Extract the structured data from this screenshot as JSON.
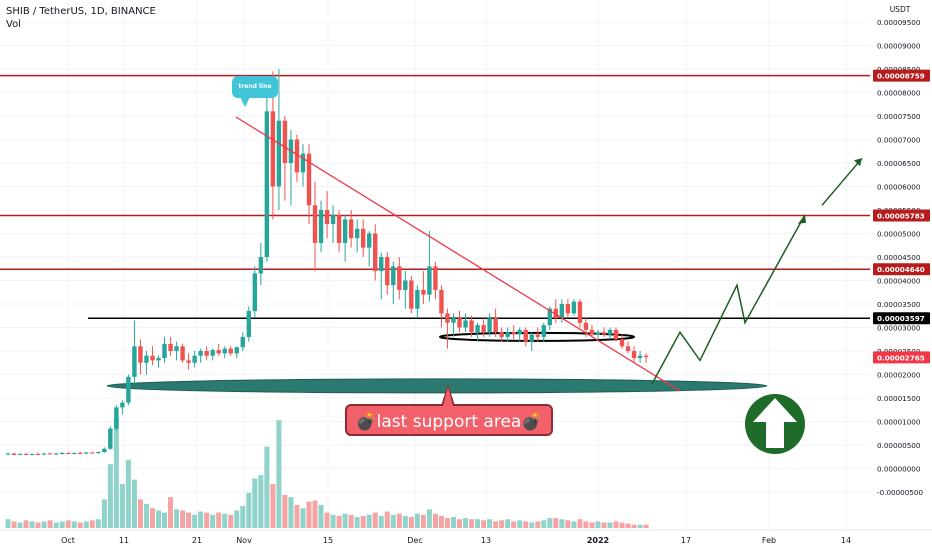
{
  "header": {
    "line1": "SHIB / TetherUS, 1D, BINANCE",
    "line2": "Vol"
  },
  "annotations": {
    "trend_line_label": "trend line",
    "support_label": "💣last support area💣"
  },
  "colors": {
    "up": "#26a69a",
    "down": "#ef5350",
    "resistance": "#b71c1c",
    "trendline": "#f23645",
    "arrow": "#1b5e20",
    "support_zone": "#2b7a6f"
  },
  "chart_data": {
    "type": "candlestick",
    "title": "SHIB / TetherUS, 1D, BINANCE",
    "x_label": "",
    "y_label": "USDT",
    "y_range": [
      -6e-06,
      9.9e-06
    ],
    "x_ticks": [
      "Oct",
      "11",
      "21",
      "Nov",
      "15",
      "Dec",
      "13",
      "2022",
      "17",
      "Feb",
      "14"
    ],
    "y_ticks": [
      "0.00009500",
      "0.00009000",
      "0.00008500",
      "0.00008000",
      "0.00007500",
      "0.00007000",
      "0.00006500",
      "0.00006000",
      "0.00005500",
      "0.00005000",
      "0.00004500",
      "0.00004000",
      "0.00003500",
      "0.00003000",
      "0.00002500",
      "0.00002000",
      "0.00001500",
      "0.00001000",
      "0.00000500",
      "0.00000000",
      "-0.00000500"
    ],
    "horizontal_levels": [
      {
        "label": "0.00008759",
        "value": 8.759e-06,
        "color": "#b71c1c"
      },
      {
        "label": "0.00005783",
        "value": 5.783e-06,
        "color": "#b71c1c"
      },
      {
        "label": "0.00004640",
        "value": 4.64e-06,
        "color": "#b71c1c"
      },
      {
        "label": "0.00003597",
        "value": 3.597e-06,
        "color": "#000000"
      }
    ],
    "last_price": {
      "label": "0.00002765",
      "value": 2.765e-06,
      "color": "#f23645"
    },
    "candles": [
      {
        "o": 7e-07,
        "h": 7.4e-07,
        "l": 6.8e-07,
        "c": 7.2e-07
      },
      {
        "o": 7.2e-07,
        "h": 7.3e-07,
        "l": 6.8e-07,
        "c": 6.9e-07
      },
      {
        "o": 6.9e-07,
        "h": 7.2e-07,
        "l": 6.8e-07,
        "c": 7.1e-07
      },
      {
        "o": 7.1e-07,
        "h": 7.3e-07,
        "l": 6.9e-07,
        "c": 7e-07
      },
      {
        "o": 7e-07,
        "h": 7.2e-07,
        "l": 6.8e-07,
        "c": 7.1e-07
      },
      {
        "o": 7.1e-07,
        "h": 7.4e-07,
        "l": 6.9e-07,
        "c": 7e-07
      },
      {
        "o": 7e-07,
        "h": 7.3e-07,
        "l": 6.8e-07,
        "c": 7.2e-07
      },
      {
        "o": 7.2e-07,
        "h": 7.4e-07,
        "l": 7e-07,
        "c": 7.1e-07
      },
      {
        "o": 7.1e-07,
        "h": 7.3e-07,
        "l": 6.9e-07,
        "c": 7.2e-07
      },
      {
        "o": 7.2e-07,
        "h": 7.5e-07,
        "l": 7e-07,
        "c": 7.3e-07
      },
      {
        "o": 7.3e-07,
        "h": 7.5e-07,
        "l": 7.1e-07,
        "c": 7.2e-07
      },
      {
        "o": 7.2e-07,
        "h": 7.4e-07,
        "l": 7e-07,
        "c": 7.3e-07
      },
      {
        "o": 7.3e-07,
        "h": 7.6e-07,
        "l": 7.1e-07,
        "c": 7.2e-07
      },
      {
        "o": 7.2e-07,
        "h": 7.5e-07,
        "l": 7e-07,
        "c": 7.4e-07
      },
      {
        "o": 7.4e-07,
        "h": 7.6e-07,
        "l": 7.2e-07,
        "c": 7.3e-07
      },
      {
        "o": 7.3e-07,
        "h": 7.6e-07,
        "l": 7.1e-07,
        "c": 7.5e-07
      },
      {
        "o": 7.5e-07,
        "h": 8.5e-07,
        "l": 7.3e-07,
        "c": 8.2e-07
      },
      {
        "o": 8.2e-07,
        "h": 1.3e-06,
        "l": 8e-07,
        "c": 1.25e-06
      },
      {
        "o": 1.25e-06,
        "h": 1.75e-06,
        "l": 1.2e-06,
        "c": 1.7e-06
      },
      {
        "o": 1.7e-06,
        "h": 1.85e-06,
        "l": 1.55e-06,
        "c": 1.8e-06
      },
      {
        "o": 1.8e-06,
        "h": 2.4e-06,
        "l": 1.75e-06,
        "c": 2.35e-06
      },
      {
        "o": 2.35e-06,
        "h": 3.55e-06,
        "l": 2.2e-06,
        "c": 3e-06
      },
      {
        "o": 3e-06,
        "h": 3.15e-06,
        "l": 2.4e-06,
        "c": 2.65e-06
      },
      {
        "o": 2.65e-06,
        "h": 2.9e-06,
        "l": 2.4e-06,
        "c": 2.8e-06
      },
      {
        "o": 2.8e-06,
        "h": 3e-06,
        "l": 2.6e-06,
        "c": 2.7e-06
      },
      {
        "o": 2.7e-06,
        "h": 2.8e-06,
        "l": 2.55e-06,
        "c": 2.75e-06
      },
      {
        "o": 2.75e-06,
        "h": 3.2e-06,
        "l": 2.65e-06,
        "c": 3.05e-06
      },
      {
        "o": 3.05e-06,
        "h": 3.2e-06,
        "l": 2.8e-06,
        "c": 2.9e-06
      },
      {
        "o": 2.9e-06,
        "h": 3.1e-06,
        "l": 2.7e-06,
        "c": 3e-06
      },
      {
        "o": 3e-06,
        "h": 3.05e-06,
        "l": 2.65e-06,
        "c": 2.7e-06
      },
      {
        "o": 2.7e-06,
        "h": 2.85e-06,
        "l": 2.5e-06,
        "c": 2.65e-06
      },
      {
        "o": 2.65e-06,
        "h": 2.9e-06,
        "l": 2.55e-06,
        "c": 2.8e-06
      },
      {
        "o": 2.8e-06,
        "h": 2.95e-06,
        "l": 2.65e-06,
        "c": 2.9e-06
      },
      {
        "o": 2.9e-06,
        "h": 3e-06,
        "l": 2.7e-06,
        "c": 2.8e-06
      },
      {
        "o": 2.8e-06,
        "h": 2.95e-06,
        "l": 2.7e-06,
        "c": 2.92e-06
      },
      {
        "o": 2.92e-06,
        "h": 3.05e-06,
        "l": 2.8e-06,
        "c": 2.85e-06
      },
      {
        "o": 2.85e-06,
        "h": 3e-06,
        "l": 2.75e-06,
        "c": 2.95e-06
      },
      {
        "o": 2.95e-06,
        "h": 3e-06,
        "l": 2.8e-06,
        "c": 2.85e-06
      },
      {
        "o": 2.85e-06,
        "h": 3e-06,
        "l": 2.75e-06,
        "c": 2.98e-06
      },
      {
        "o": 2.98e-06,
        "h": 3.3e-06,
        "l": 2.9e-06,
        "c": 3.2e-06
      },
      {
        "o": 3.2e-06,
        "h": 3.85e-06,
        "l": 3.1e-06,
        "c": 3.75e-06
      },
      {
        "o": 3.75e-06,
        "h": 4.7e-06,
        "l": 3.6e-06,
        "c": 4.55e-06
      },
      {
        "o": 4.55e-06,
        "h": 5.2e-06,
        "l": 4.3e-06,
        "c": 4.9e-06
      },
      {
        "o": 4.9e-06,
        "h": 8.6e-06,
        "l": 4.8e-06,
        "c": 8e-06
      },
      {
        "o": 8e-06,
        "h": 8.85e-06,
        "l": 5.7e-06,
        "c": 6.4e-06
      },
      {
        "o": 6.4e-06,
        "h": 8.9e-06,
        "l": 5.9e-06,
        "c": 7.8e-06
      },
      {
        "o": 7.8e-06,
        "h": 7.9e-06,
        "l": 6.1e-06,
        "c": 6.9e-06
      },
      {
        "o": 6.9e-06,
        "h": 7.6e-06,
        "l": 6e-06,
        "c": 7.4e-06
      },
      {
        "o": 7.4e-06,
        "h": 7.5e-06,
        "l": 6.5e-06,
        "c": 6.7e-06
      },
      {
        "o": 6.7e-06,
        "h": 7.3e-06,
        "l": 6.4e-06,
        "c": 7.1e-06
      },
      {
        "o": 7.1e-06,
        "h": 7.3e-06,
        "l": 5.6e-06,
        "c": 6e-06
      },
      {
        "o": 6e-06,
        "h": 6.5e-06,
        "l": 4.6e-06,
        "c": 5.2e-06
      },
      {
        "o": 5.2e-06,
        "h": 6.1e-06,
        "l": 5e-06,
        "c": 5.9e-06
      },
      {
        "o": 5.9e-06,
        "h": 6.3e-06,
        "l": 5.3e-06,
        "c": 5.6e-06
      },
      {
        "o": 5.6e-06,
        "h": 6e-06,
        "l": 5.2e-06,
        "c": 5.8e-06
      },
      {
        "o": 5.8e-06,
        "h": 5.9e-06,
        "l": 5e-06,
        "c": 5.2e-06
      },
      {
        "o": 5.2e-06,
        "h": 5.8e-06,
        "l": 4.8e-06,
        "c": 5.7e-06
      },
      {
        "o": 5.7e-06,
        "h": 5.9e-06,
        "l": 5.1e-06,
        "c": 5.3e-06
      },
      {
        "o": 5.3e-06,
        "h": 5.7e-06,
        "l": 5e-06,
        "c": 5.5e-06
      },
      {
        "o": 5.5e-06,
        "h": 5.7e-06,
        "l": 4.9e-06,
        "c": 5.1e-06
      },
      {
        "o": 5.1e-06,
        "h": 5.45e-06,
        "l": 4.7e-06,
        "c": 5.4e-06
      },
      {
        "o": 5.4e-06,
        "h": 5.6e-06,
        "l": 4.4e-06,
        "c": 4.6e-06
      },
      {
        "o": 4.6e-06,
        "h": 5e-06,
        "l": 4e-06,
        "c": 4.9e-06
      },
      {
        "o": 4.9e-06,
        "h": 5e-06,
        "l": 4.1e-06,
        "c": 4.3e-06
      },
      {
        "o": 4.3e-06,
        "h": 4.8e-06,
        "l": 3.9e-06,
        "c": 4.7e-06
      },
      {
        "o": 4.7e-06,
        "h": 4.9e-06,
        "l": 4e-06,
        "c": 4.2e-06
      },
      {
        "o": 4.2e-06,
        "h": 4.6e-06,
        "l": 3.8e-06,
        "c": 4.4e-06
      },
      {
        "o": 4.4e-06,
        "h": 4.5e-06,
        "l": 3.7e-06,
        "c": 3.8e-06
      },
      {
        "o": 3.8e-06,
        "h": 4.3e-06,
        "l": 3.6e-06,
        "c": 4.2e-06
      },
      {
        "o": 4.2e-06,
        "h": 4.6e-06,
        "l": 3.9e-06,
        "c": 4.1e-06
      },
      {
        "o": 4.1e-06,
        "h": 5.45e-06,
        "l": 3.95e-06,
        "c": 4.7e-06
      },
      {
        "o": 4.7e-06,
        "h": 4.8e-06,
        "l": 4e-06,
        "c": 4.2e-06
      },
      {
        "o": 4.2e-06,
        "h": 4.3e-06,
        "l": 3.4e-06,
        "c": 3.7e-06
      },
      {
        "o": 3.7e-06,
        "h": 3.8e-06,
        "l": 2.95e-06,
        "c": 3.5e-06
      },
      {
        "o": 3.5e-06,
        "h": 3.7e-06,
        "l": 3.2e-06,
        "c": 3.6e-06
      },
      {
        "o": 3.6e-06,
        "h": 3.75e-06,
        "l": 3.3e-06,
        "c": 3.4e-06
      },
      {
        "o": 3.4e-06,
        "h": 3.7e-06,
        "l": 3.3e-06,
        "c": 3.55e-06
      },
      {
        "o": 3.55e-06,
        "h": 3.65e-06,
        "l": 3.2e-06,
        "c": 3.3e-06
      },
      {
        "o": 3.3e-06,
        "h": 3.5e-06,
        "l": 3.1e-06,
        "c": 3.45e-06
      },
      {
        "o": 3.45e-06,
        "h": 3.6e-06,
        "l": 3.2e-06,
        "c": 3.3e-06
      },
      {
        "o": 3.3e-06,
        "h": 3.7e-06,
        "l": 3.2e-06,
        "c": 3.6e-06
      },
      {
        "o": 3.6e-06,
        "h": 3.8e-06,
        "l": 3.2e-06,
        "c": 3.3e-06
      },
      {
        "o": 3.3e-06,
        "h": 3.4e-06,
        "l": 3.1e-06,
        "c": 3.2e-06
      },
      {
        "o": 3.2e-06,
        "h": 3.4e-06,
        "l": 3.1e-06,
        "c": 3.3e-06
      },
      {
        "o": 3.3e-06,
        "h": 3.45e-06,
        "l": 3.15e-06,
        "c": 3.25e-06
      },
      {
        "o": 3.25e-06,
        "h": 3.4e-06,
        "l": 3.1e-06,
        "c": 3.35e-06
      },
      {
        "o": 3.35e-06,
        "h": 3.4e-06,
        "l": 3e-06,
        "c": 3.1e-06
      },
      {
        "o": 3.1e-06,
        "h": 3.3e-06,
        "l": 2.9e-06,
        "c": 3.25e-06
      },
      {
        "o": 3.25e-06,
        "h": 3.4e-06,
        "l": 3.1e-06,
        "c": 3.2e-06
      },
      {
        "o": 3.2e-06,
        "h": 3.5e-06,
        "l": 3.1e-06,
        "c": 3.45e-06
      },
      {
        "o": 3.45e-06,
        "h": 3.85e-06,
        "l": 3.35e-06,
        "c": 3.8e-06
      },
      {
        "o": 3.8e-06,
        "h": 4e-06,
        "l": 3.5e-06,
        "c": 3.6e-06
      },
      {
        "o": 3.6e-06,
        "h": 4e-06,
        "l": 3.5e-06,
        "c": 3.9e-06
      },
      {
        "o": 3.9e-06,
        "h": 4e-06,
        "l": 3.6e-06,
        "c": 3.7e-06
      },
      {
        "o": 3.7e-06,
        "h": 4e-06,
        "l": 3.65e-06,
        "c": 3.95e-06
      },
      {
        "o": 3.95e-06,
        "h": 4e-06,
        "l": 3.4e-06,
        "c": 3.5e-06
      },
      {
        "o": 3.5e-06,
        "h": 3.6e-06,
        "l": 3.2e-06,
        "c": 3.35e-06
      },
      {
        "o": 3.35e-06,
        "h": 3.45e-06,
        "l": 3.2e-06,
        "c": 3.25e-06
      },
      {
        "o": 3.25e-06,
        "h": 3.35e-06,
        "l": 3.15e-06,
        "c": 3.3e-06
      },
      {
        "o": 3.3e-06,
        "h": 3.4e-06,
        "l": 3.2e-06,
        "c": 3.25e-06
      },
      {
        "o": 3.25e-06,
        "h": 3.4e-06,
        "l": 3.15e-06,
        "c": 3.35e-06
      },
      {
        "o": 3.35e-06,
        "h": 3.4e-06,
        "l": 3.1e-06,
        "c": 3.15e-06
      },
      {
        "o": 3.15e-06,
        "h": 3.25e-06,
        "l": 2.95e-06,
        "c": 3e-06
      },
      {
        "o": 3e-06,
        "h": 3.1e-06,
        "l": 2.85e-06,
        "c": 2.9e-06
      },
      {
        "o": 2.9e-06,
        "h": 3e-06,
        "l": 2.65e-06,
        "c": 2.75e-06
      },
      {
        "o": 2.75e-06,
        "h": 2.9e-06,
        "l": 2.65e-06,
        "c": 2.8e-06
      },
      {
        "o": 2.8e-06,
        "h": 2.85e-06,
        "l": 2.65e-06,
        "c": 2.77e-06
      }
    ],
    "volume": [
      8,
      6,
      5,
      7,
      6,
      5,
      6,
      7,
      5,
      6,
      7,
      6,
      5,
      6,
      7,
      8,
      26,
      58,
      100,
      40,
      62,
      44,
      26,
      22,
      18,
      16,
      14,
      28,
      17,
      16,
      14,
      12,
      15,
      14,
      12,
      14,
      13,
      12,
      16,
      20,
      32,
      45,
      48,
      74,
      40,
      98,
      30,
      28,
      21,
      18,
      24,
      25,
      21,
      14,
      12,
      11,
      13,
      12,
      10,
      11,
      12,
      14,
      11,
      15,
      12,
      13,
      11,
      10,
      13,
      12,
      17,
      13,
      11,
      9,
      10,
      8,
      9,
      8,
      8,
      7,
      8,
      6,
      7,
      8,
      6,
      7,
      6,
      5,
      6,
      7,
      9,
      9,
      8,
      7,
      6,
      8,
      6,
      5,
      6,
      5,
      5,
      6,
      5,
      4,
      3,
      3,
      3
    ],
    "volume_range": [
      0,
      100
    ],
    "trendline": [
      {
        "x": "2021-10-28",
        "y": 7.8e-06
      },
      {
        "x": "2022-01-16",
        "y": 1.9e-06
      }
    ],
    "support_zone_y": 2.2e-06,
    "projection": [
      2.2e-06,
      3.3e-06,
      2.7e-06,
      4.3e-06,
      3.5e-06,
      5.8e-06
    ],
    "projection_arrow_y": [
      6e-06,
      7e-06
    ]
  }
}
